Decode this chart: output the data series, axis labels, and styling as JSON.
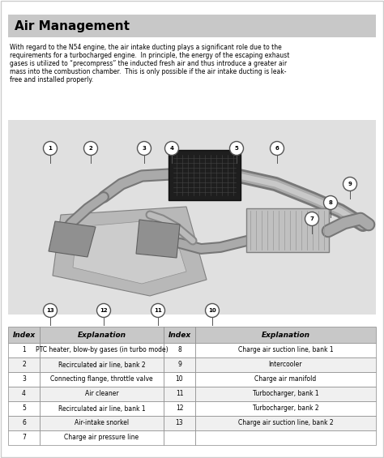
{
  "title": "Air Management",
  "title_bg": "#c8c8c8",
  "body_bg": "#ffffff",
  "para_lines": [
    "With regard to the N54 engine, the air intake ducting plays a significant role due to the",
    "requirements for a turbocharged engine.  In principle, the energy of the escaping exhaust",
    "gases is utilized to “precompress” the inducted fresh air and thus introduce a greater air",
    "mass into the combustion chamber.  This is only possible if the air intake ducting is leak-",
    "free and installed properly."
  ],
  "table_header_bg": "#c8c8c8",
  "table_row_bg_even": "#ffffff",
  "table_row_bg_odd": "#f0f0f0",
  "table_border_color": "#888888",
  "col_headers": [
    "Index",
    "Explanation",
    "Index",
    "Explanation"
  ],
  "rows": [
    [
      "1",
      "PTC heater, blow-by gases (in turbo mode)",
      "8",
      "Charge air suction line, bank 1"
    ],
    [
      "2",
      "Recirculated air line, bank 2",
      "9",
      "Intercooler"
    ],
    [
      "3",
      "Connecting flange, throttle valve",
      "10",
      "Charge air manifold"
    ],
    [
      "4",
      "Air cleaner",
      "11",
      "Turbocharger, bank 1"
    ],
    [
      "5",
      "Recirculated air line, bank 1",
      "12",
      "Turbocharger, bank 2"
    ],
    [
      "6",
      "Air-intake snorkel",
      "13",
      "Charge air suction line, bank 2"
    ],
    [
      "7",
      "Charge air pressure line",
      "",
      ""
    ]
  ],
  "fig_width": 4.74,
  "fig_height": 5.65,
  "dpi": 100
}
